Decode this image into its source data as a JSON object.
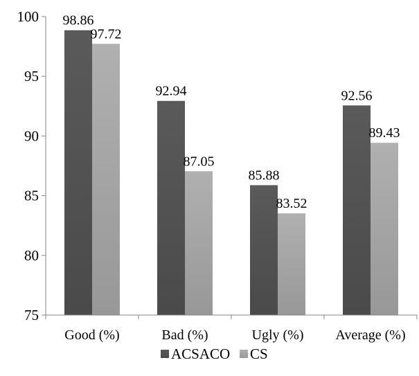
{
  "chart_data": {
    "type": "bar",
    "categories": [
      "Good (%)",
      "Bad (%)",
      "Ugly (%)",
      "Average (%)"
    ],
    "series": [
      {
        "name": "ACSACO",
        "values": [
          98.86,
          92.94,
          85.88,
          92.56
        ],
        "color": "#555555"
      },
      {
        "name": "CS",
        "values": [
          97.72,
          87.05,
          83.52,
          89.43
        ],
        "color": "#a6a6a6"
      }
    ],
    "data_labels": [
      [
        "98.86",
        "92.94",
        "85.88",
        "92.56"
      ],
      [
        "97.72",
        "87.05",
        "83.52",
        "89.43"
      ]
    ],
    "ylim": [
      75,
      100
    ],
    "yticks": [
      75,
      80,
      85,
      90,
      95,
      100
    ],
    "ytick_labels": [
      "75",
      "80",
      "85",
      "90",
      "95",
      "100"
    ],
    "grid": false,
    "legend_position": "bottom-center"
  }
}
